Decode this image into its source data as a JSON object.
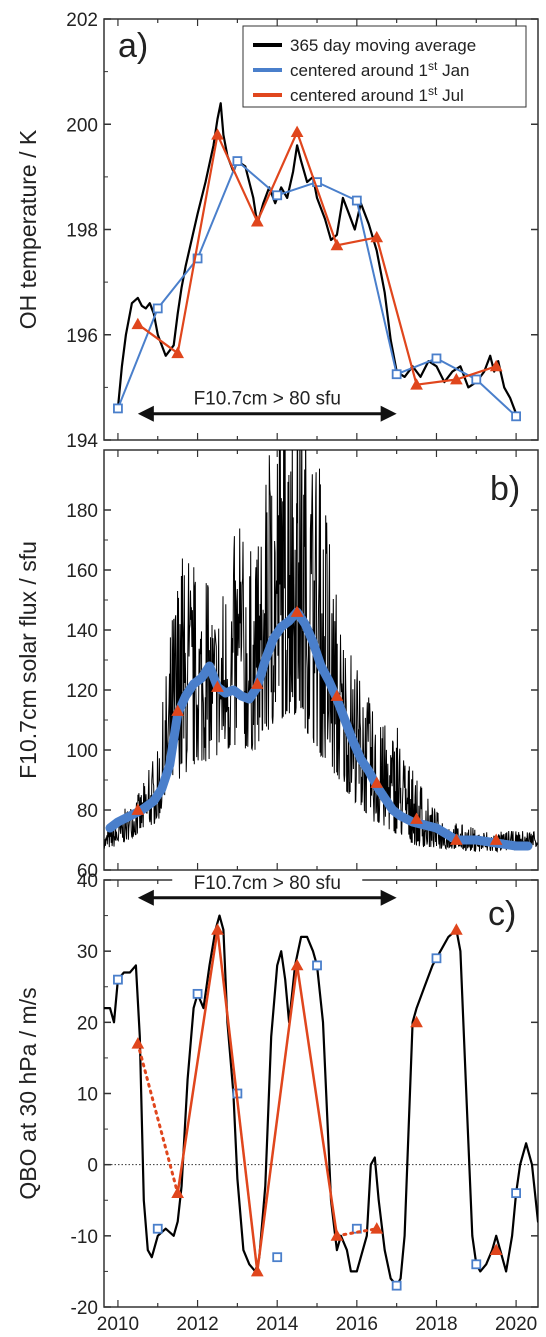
{
  "colors": {
    "moving_average": "#000000",
    "jan": "#4a7fcb",
    "jul": "#e0461d",
    "frame": "#333333"
  },
  "x_ticks": [
    "2010",
    "2012",
    "2014",
    "2016",
    "2018",
    "2020"
  ],
  "legend": {
    "ma": "365 day moving average",
    "jan": "centered around 1st Jan",
    "jul": "centered around 1st Jul"
  },
  "chart_data": [
    {
      "type": "line",
      "panel_label": "a)",
      "ylabel": "OH temperature / K",
      "xlim": [
        2009.65,
        2020.55
      ],
      "ylim": [
        194,
        202
      ],
      "yticks": [
        194,
        196,
        198,
        200,
        202
      ],
      "annotation": {
        "text": "F10.7cm > 80 sfu",
        "x_from": 2010.5,
        "x_to": 2017.0,
        "y": 194.5
      },
      "series": [
        {
          "name": "365 day moving average",
          "x": [
            2010.0,
            2010.1,
            2010.2,
            2010.35,
            2010.5,
            2010.6,
            2010.7,
            2010.8,
            2010.9,
            2011.0,
            2011.2,
            2011.4,
            2011.5,
            2011.6,
            2011.7,
            2011.85,
            2012.0,
            2012.2,
            2012.4,
            2012.5,
            2012.58,
            2012.65,
            2012.75,
            2012.9,
            2013.0,
            2013.2,
            2013.4,
            2013.5,
            2013.65,
            2013.8,
            2013.95,
            2014.1,
            2014.25,
            2014.4,
            2014.5,
            2014.6,
            2014.75,
            2014.9,
            2015.0,
            2015.2,
            2015.35,
            2015.5,
            2015.65,
            2015.8,
            2015.95,
            2016.1,
            2016.3,
            2016.5,
            2016.7,
            2016.85,
            2017.0,
            2017.2,
            2017.4,
            2017.6,
            2017.8,
            2018.0,
            2018.2,
            2018.4,
            2018.6,
            2018.8,
            2019.0,
            2019.2,
            2019.35,
            2019.45,
            2019.55,
            2019.7,
            2019.85,
            2020.0
          ],
          "y": [
            194.6,
            195.4,
            196.0,
            196.6,
            196.7,
            196.55,
            196.5,
            196.6,
            196.4,
            196.0,
            195.6,
            195.8,
            196.4,
            196.9,
            197.3,
            197.8,
            198.3,
            198.9,
            199.6,
            200.1,
            200.4,
            199.8,
            199.4,
            199.1,
            199.3,
            199.2,
            198.6,
            198.1,
            198.5,
            198.8,
            198.5,
            198.8,
            198.6,
            199.1,
            199.6,
            199.3,
            198.9,
            199.0,
            198.6,
            198.2,
            197.8,
            197.9,
            198.6,
            198.3,
            198.0,
            198.5,
            198.1,
            197.6,
            196.8,
            195.9,
            195.3,
            195.2,
            195.4,
            195.2,
            195.5,
            195.4,
            195.1,
            195.3,
            195.4,
            195.0,
            195.1,
            195.3,
            195.6,
            195.3,
            195.5,
            195.0,
            194.8,
            194.5
          ]
        },
        {
          "name": "centered around 1st Jan",
          "x": [
            2010.0,
            2011.0,
            2012.0,
            2013.0,
            2014.0,
            2015.0,
            2016.0,
            2017.0,
            2018.0,
            2019.0,
            2020.0
          ],
          "y": [
            194.6,
            196.5,
            197.45,
            199.3,
            198.65,
            198.9,
            198.55,
            195.25,
            195.55,
            195.15,
            194.45
          ]
        },
        {
          "name": "centered around 1st Jul",
          "x": [
            2010.5,
            2011.5,
            2012.5,
            2013.5,
            2014.5,
            2015.5,
            2016.5,
            2017.5,
            2018.5,
            2019.5
          ],
          "y": [
            196.2,
            195.65,
            199.8,
            198.15,
            199.85,
            197.7,
            197.85,
            195.05,
            195.15,
            195.4
          ]
        }
      ]
    },
    {
      "type": "line",
      "panel_label": "b)",
      "ylabel": "F10.7cm solar flux / sfu",
      "xlim": [
        2009.65,
        2020.55
      ],
      "ylim": [
        60,
        200
      ],
      "yticks": [
        60,
        80,
        100,
        120,
        140,
        160,
        180
      ],
      "daily_envelope_x": [
        2009.65,
        2010.0,
        2010.5,
        2011.0,
        2011.5,
        2012.0,
        2012.5,
        2013.0,
        2013.5,
        2014.0,
        2014.5,
        2015.0,
        2015.5,
        2016.0,
        2016.5,
        2017.0,
        2017.5,
        2018.0,
        2018.5,
        2019.0,
        2019.5,
        2020.0,
        2020.55
      ],
      "daily_envelope_min": [
        67,
        68,
        72,
        76,
        90,
        95,
        98,
        100,
        100,
        110,
        112,
        100,
        90,
        82,
        75,
        72,
        68,
        67,
        67,
        66,
        66,
        67,
        68
      ],
      "daily_envelope_max": [
        72,
        78,
        85,
        100,
        165,
        160,
        150,
        175,
        165,
        220,
        230,
        200,
        150,
        130,
        110,
        108,
        90,
        80,
        76,
        74,
        73,
        73,
        74
      ],
      "series": [
        {
          "name": "centered around 1st Jan",
          "x": [
            2009.8,
            2010.0,
            2010.3,
            2010.6,
            2010.9,
            2011.1,
            2011.3,
            2011.5,
            2011.7,
            2011.9,
            2012.1,
            2012.3,
            2012.5,
            2012.7,
            2012.9,
            2013.1,
            2013.3,
            2013.5,
            2013.7,
            2013.9,
            2014.1,
            2014.3,
            2014.5,
            2014.7,
            2014.9,
            2015.1,
            2015.3,
            2015.5,
            2015.7,
            2015.9,
            2016.1,
            2016.3,
            2016.5,
            2016.7,
            2016.9,
            2017.1,
            2017.4,
            2017.7,
            2018.0,
            2018.5,
            2019.0,
            2019.5,
            2020.0,
            2020.3
          ],
          "y": [
            74,
            76,
            78,
            80,
            83,
            87,
            95,
            112,
            118,
            122,
            124,
            128,
            121,
            119,
            120,
            118,
            117,
            121,
            130,
            137,
            141,
            143,
            146,
            142,
            136,
            128,
            123,
            117,
            110,
            103,
            97,
            93,
            88,
            84,
            80,
            78,
            76,
            75,
            74,
            70,
            70,
            69,
            68,
            68
          ]
        },
        {
          "name": "centered around 1st Jul",
          "x": [
            2010.5,
            2011.5,
            2012.5,
            2013.5,
            2014.5,
            2015.5,
            2016.5,
            2017.5,
            2018.5,
            2019.5
          ],
          "y": [
            80,
            113,
            121,
            122,
            146,
            118,
            89,
            77,
            70,
            70
          ]
        }
      ]
    },
    {
      "type": "line",
      "panel_label": "c)",
      "ylabel": "QBO at 30 hPa  / m/s",
      "xlim": [
        2009.65,
        2020.55
      ],
      "ylim": [
        -20,
        40
      ],
      "yticks": [
        -20,
        -10,
        0,
        10,
        20,
        30,
        40
      ],
      "annotation": {
        "text": "F10.7cm > 80 sfu",
        "x_from": 2010.5,
        "x_to": 2017.0,
        "y": 37.5
      },
      "series": [
        {
          "name": "QBO",
          "x": [
            2009.65,
            2009.8,
            2009.9,
            2010.0,
            2010.15,
            2010.3,
            2010.45,
            2010.55,
            2010.65,
            2010.75,
            2010.85,
            2011.0,
            2011.2,
            2011.4,
            2011.5,
            2011.6,
            2011.75,
            2011.9,
            2012.0,
            2012.15,
            2012.3,
            2012.45,
            2012.55,
            2012.65,
            2012.75,
            2012.9,
            2013.0,
            2013.15,
            2013.3,
            2013.45,
            2013.55,
            2013.7,
            2013.85,
            2014.0,
            2014.1,
            2014.2,
            2014.3,
            2014.45,
            2014.6,
            2014.75,
            2014.9,
            2015.0,
            2015.15,
            2015.35,
            2015.5,
            2015.6,
            2015.75,
            2015.85,
            2016.0,
            2016.1,
            2016.25,
            2016.35,
            2016.45,
            2016.55,
            2016.7,
            2016.85,
            2017.0,
            2017.1,
            2017.2,
            2017.3,
            2017.4,
            2017.5,
            2017.7,
            2017.9,
            2018.1,
            2018.3,
            2018.5,
            2018.6,
            2018.75,
            2018.9,
            2019.0,
            2019.1,
            2019.25,
            2019.4,
            2019.5,
            2019.6,
            2019.75,
            2019.9,
            2020.0,
            2020.1,
            2020.25,
            2020.4,
            2020.55
          ],
          "y": [
            22,
            22,
            20,
            26,
            27,
            27,
            28,
            18,
            -5,
            -12,
            -13,
            -10,
            -9,
            -10,
            -8,
            -3,
            12,
            22,
            24,
            22,
            28,
            33,
            35,
            33,
            20,
            10,
            -2,
            -12,
            -14,
            -15,
            -13,
            -3,
            18,
            28,
            30,
            26,
            20,
            28,
            32,
            32,
            30,
            28,
            20,
            -5,
            -12,
            -10,
            -12,
            -15,
            -15,
            -13,
            -10,
            0,
            1,
            -5,
            -12,
            -16,
            -17,
            -16,
            -10,
            5,
            20,
            22,
            25,
            28,
            30,
            32,
            33,
            30,
            10,
            -10,
            -14,
            -15,
            -14,
            -12,
            -10,
            -12,
            -15,
            -10,
            -4,
            0,
            3,
            0,
            -8
          ]
        },
        {
          "name": "centered around 1st Jan",
          "x": [
            2010.0,
            2011.0,
            2012.0,
            2013.0,
            2014.0,
            2015.0,
            2016.0,
            2017.0,
            2018.0,
            2019.0,
            2020.0
          ],
          "y": [
            26,
            -9,
            24,
            10,
            -13,
            28,
            -9,
            -17,
            29,
            -14,
            -4
          ]
        },
        {
          "name": "centered around 1st Jul",
          "x": [
            2010.5,
            2011.5,
            2012.5,
            2013.5,
            2014.5,
            2015.5,
            2016.5,
            2017.5,
            2018.5,
            2019.5
          ],
          "y": [
            17,
            -4,
            33,
            -15,
            28,
            -10,
            -9,
            20,
            33,
            -12
          ],
          "style_dotted_segments": [
            [
              2010.5,
              2011.5
            ],
            [
              2015.5,
              2016.5
            ]
          ]
        }
      ]
    }
  ]
}
